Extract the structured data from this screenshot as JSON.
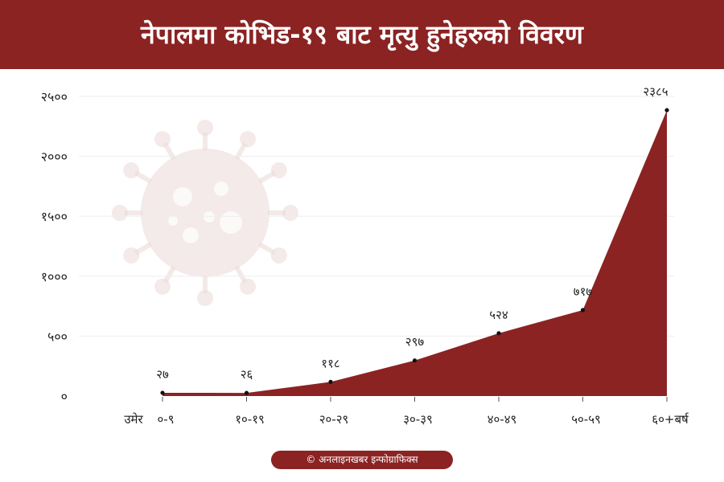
{
  "header": {
    "title": "नेपालमा कोभिड-१९ बाट मृत्यु हुनेहरुको विवरण"
  },
  "credit": "© अनलाइनखबर इन्फोग्राफिक्स",
  "colors": {
    "accent": "#8b2323",
    "virus": "#ead9d7",
    "grid": "#eeeeee"
  },
  "chart_data": {
    "type": "area",
    "title": "नेपालमा कोभिड-१९ बाट मृत्यु हुनेहरुको विवरण",
    "xlabel_prefix": "उमेर",
    "categories": [
      "०-९",
      "१०-१९",
      "२०-२९",
      "३०-३९",
      "४०-४९",
      "५०-५९",
      "६०+बर्ष"
    ],
    "values": [
      27,
      26,
      118,
      297,
      524,
      717,
      2385
    ],
    "value_labels": [
      "२७",
      "२६",
      "११८",
      "२९७",
      "५२४",
      "७१७",
      "२३८५"
    ],
    "y_ticks": [
      0,
      500,
      1000,
      1500,
      2000,
      2500
    ],
    "y_tick_labels": [
      "०",
      "५००",
      "१०००",
      "१५००",
      "२०००",
      "२५००"
    ],
    "ylim": [
      0,
      2500
    ],
    "grid": true
  }
}
